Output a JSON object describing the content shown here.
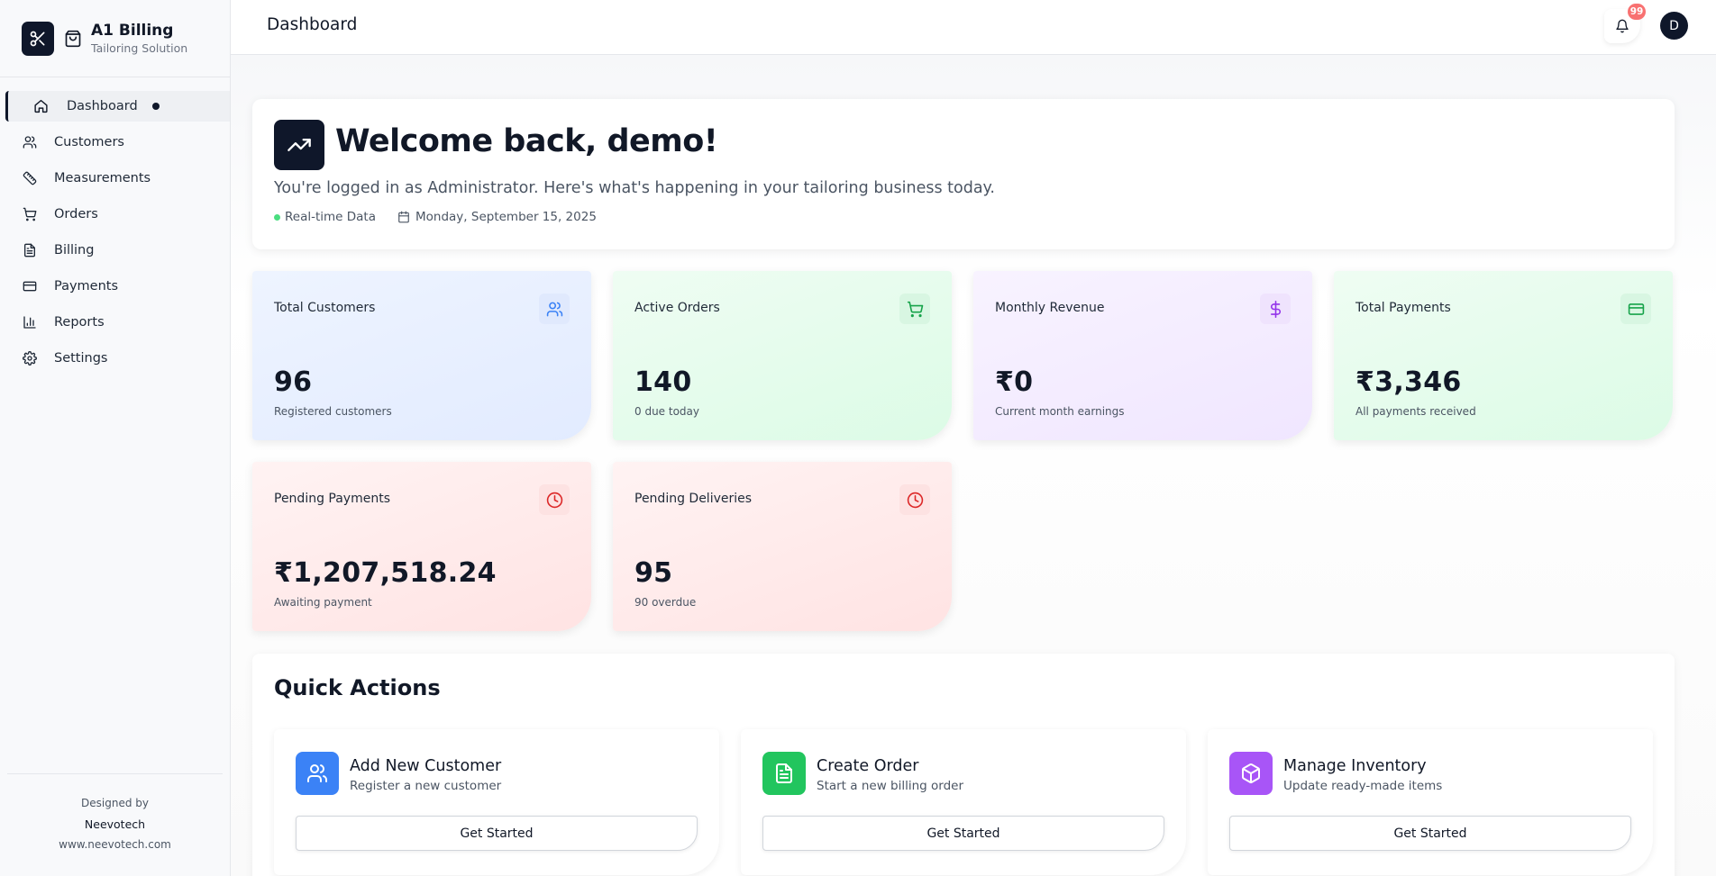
{
  "brand": {
    "name": "A1 Billing",
    "subtitle": "Tailoring Solution"
  },
  "sidebar": {
    "items": [
      {
        "label": "Dashboard",
        "icon": "home-icon",
        "active": true
      },
      {
        "label": "Customers",
        "icon": "users-icon"
      },
      {
        "label": "Measurements",
        "icon": "ruler-icon"
      },
      {
        "label": "Orders",
        "icon": "cart-icon"
      },
      {
        "label": "Billing",
        "icon": "file-text-icon"
      },
      {
        "label": "Payments",
        "icon": "credit-card-icon"
      },
      {
        "label": "Reports",
        "icon": "bar-chart-icon"
      },
      {
        "label": "Settings",
        "icon": "gear-icon"
      }
    ],
    "footer": {
      "designed_by": "Designed by",
      "company": "Neevotech",
      "website": "www.neevotech.com"
    }
  },
  "header": {
    "title": "Dashboard",
    "notification_count": "99",
    "avatar_initial": "D"
  },
  "welcome": {
    "title": "Welcome back, demo!",
    "subtitle": "You're logged in as Administrator. Here's what's happening in your tailoring business today.",
    "status": "Real-time Data",
    "date": "Monday, September 15, 2025"
  },
  "stats": [
    {
      "title": "Total Customers",
      "value": "96",
      "desc": "Registered customers",
      "icon": "users-icon",
      "color": "#3b82f6"
    },
    {
      "title": "Active Orders",
      "value": "140",
      "desc": "0 due today",
      "icon": "cart-icon",
      "color": "#16a34a"
    },
    {
      "title": "Monthly Revenue",
      "value": "₹0",
      "desc": "Current month earnings",
      "icon": "dollar-icon",
      "color": "#9333ea"
    },
    {
      "title": "Total Payments",
      "value": "₹3,346",
      "desc": "All payments received",
      "icon": "credit-card-icon",
      "color": "#16a34a"
    },
    {
      "title": "Pending Payments",
      "value": "₹1,207,518.24",
      "desc": "Awaiting payment",
      "icon": "clock-icon",
      "color": "#dc2626"
    },
    {
      "title": "Pending Deliveries",
      "value": "95",
      "desc": "90 overdue",
      "icon": "clock-icon",
      "color": "#dc2626"
    }
  ],
  "quick_actions": {
    "title": "Quick Actions",
    "items": [
      {
        "title": "Add New Customer",
        "desc": "Register a new customer",
        "button": "Get Started",
        "icon": "users-icon",
        "color": "#3b82f6"
      },
      {
        "title": "Create Order",
        "desc": "Start a new billing order",
        "button": "Get Started",
        "icon": "file-text-icon",
        "color": "#22c55e"
      },
      {
        "title": "Manage Inventory",
        "desc": "Update ready-made items",
        "button": "Get Started",
        "icon": "box-icon",
        "color": "#a855f7"
      }
    ]
  }
}
